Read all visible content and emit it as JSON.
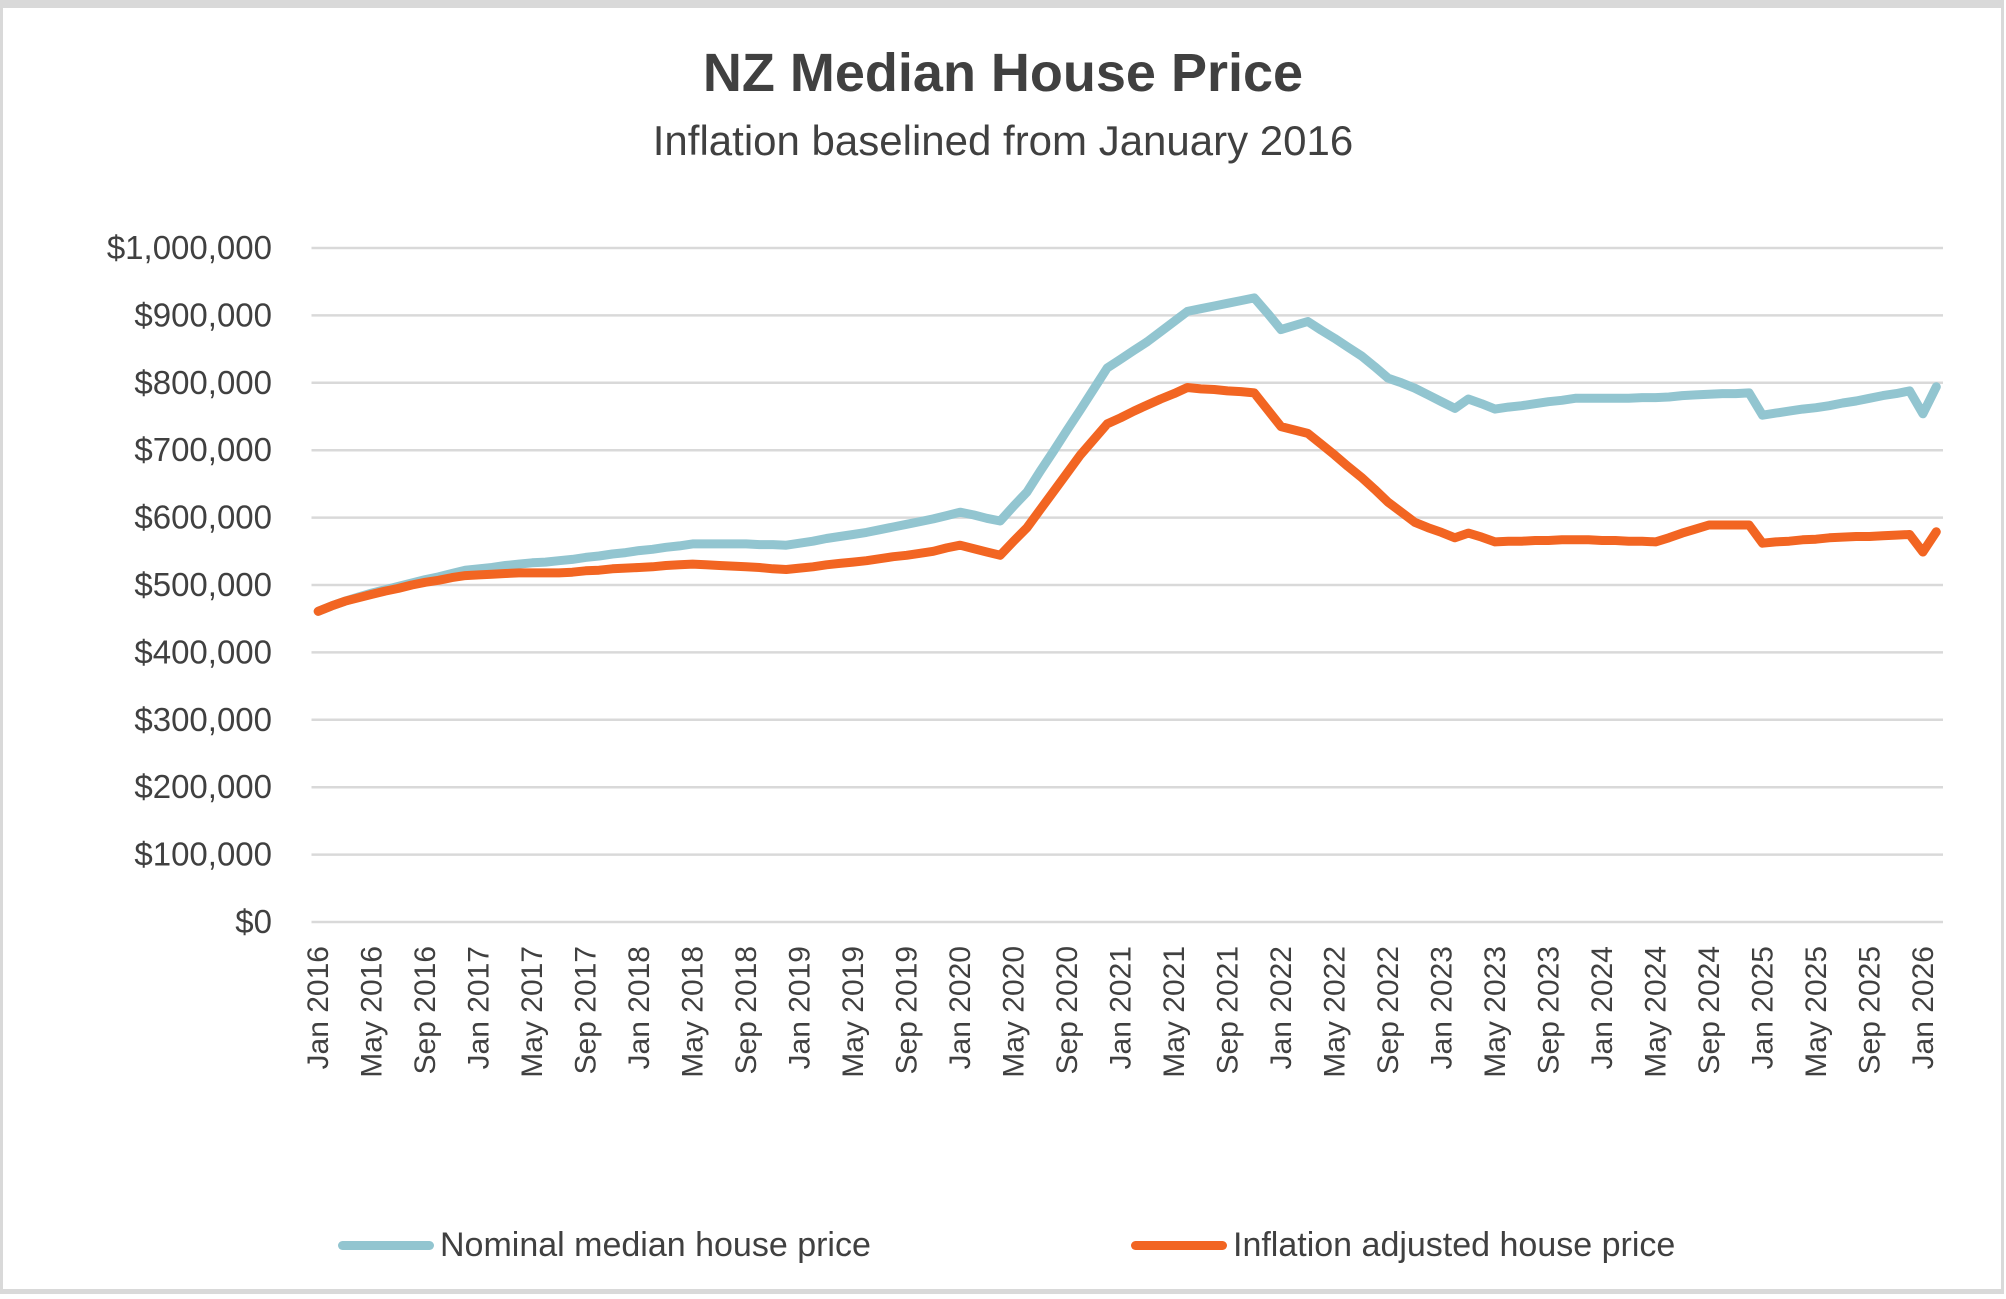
{
  "chart_data": {
    "type": "line",
    "title": "NZ Median House Price",
    "subtitle": "Inflation baselined from January 2016",
    "xlabel": "",
    "ylabel": "",
    "ylim": [
      0,
      1000000
    ],
    "y_ticks": [
      0,
      100000,
      200000,
      300000,
      400000,
      500000,
      600000,
      700000,
      800000,
      900000,
      1000000
    ],
    "y_tick_labels": [
      "$0",
      "$100,000",
      "$200,000",
      "$300,000",
      "$400,000",
      "$500,000",
      "$600,000",
      "$700,000",
      "$800,000",
      "$900,000",
      "$1,000,000"
    ],
    "grid": "horizontal",
    "x_start": "Jan 2016",
    "x_end": "Feb 2026",
    "x_frequency": "monthly",
    "x_tick_every_months": 4,
    "x_tick_labels": [
      "Jan 2016",
      "May 2016",
      "Sep 2016",
      "Jan 2017",
      "May 2017",
      "Sep 2017",
      "Jan 2018",
      "May 2018",
      "Sep 2018",
      "Jan 2019",
      "May 2019",
      "Sep 2019",
      "Jan 2020",
      "May 2020",
      "Sep 2020",
      "Jan 2021",
      "May 2021",
      "Sep 2021",
      "Jan 2022",
      "May 2022",
      "Sep 2022",
      "Jan 2023",
      "May 2023",
      "Sep 2023",
      "Jan 2024",
      "May 2024",
      "Sep 2024",
      "Jan 2025",
      "May 2025",
      "Sep 2025",
      "Jan 2026"
    ],
    "legend_position": "bottom",
    "series": [
      {
        "name": "Nominal median house price",
        "color": "#92C5D0",
        "values_thousands": [
          461,
          469,
          476,
          482,
          488,
          493,
          498,
          503,
          508,
          512,
          517,
          522,
          524,
          526,
          529,
          531,
          533,
          534,
          536,
          538,
          541,
          543,
          546,
          548,
          551,
          553,
          556,
          558,
          561,
          561,
          561,
          561,
          561,
          560,
          560,
          559,
          562,
          565,
          569,
          572,
          575,
          578,
          582,
          586,
          590,
          594,
          598,
          603,
          608,
          604,
          599,
          595,
          617,
          638,
          669,
          699,
          730,
          760,
          791,
          822,
          835,
          848,
          861,
          876,
          891,
          906,
          910,
          914,
          918,
          922,
          926,
          903,
          879,
          885,
          891,
          878,
          866,
          853,
          840,
          824,
          807,
          800,
          792,
          782,
          772,
          762,
          776,
          769,
          761,
          764,
          766,
          769,
          772,
          774,
          777,
          777,
          777,
          777,
          777,
          778,
          778,
          779,
          781,
          782,
          783,
          784,
          784,
          785,
          752,
          755,
          758,
          761,
          763,
          766,
          770,
          773,
          777,
          781,
          784,
          788,
          754,
          794
        ]
      },
      {
        "name": "Inflation adjusted house price",
        "color": "#F26522",
        "values_thousands": [
          461,
          469,
          476,
          481,
          486,
          491,
          495,
          500,
          504,
          507,
          511,
          514,
          515,
          516,
          517,
          518,
          518,
          518,
          518,
          519,
          521,
          522,
          524,
          525,
          526,
          527,
          529,
          530,
          531,
          530,
          529,
          528,
          527,
          526,
          524,
          523,
          525,
          527,
          530,
          532,
          534,
          536,
          539,
          542,
          544,
          547,
          550,
          555,
          559,
          554,
          549,
          544,
          565,
          585,
          612,
          639,
          666,
          693,
          716,
          739,
          748,
          758,
          767,
          776,
          784,
          793,
          791,
          790,
          788,
          787,
          785,
          760,
          735,
          730,
          725,
          709,
          693,
          676,
          660,
          642,
          623,
          608,
          593,
          585,
          578,
          570,
          577,
          571,
          564,
          565,
          565,
          566,
          566,
          567,
          567,
          567,
          566,
          566,
          565,
          565,
          564,
          570,
          577,
          583,
          589,
          589,
          589,
          589,
          562,
          564,
          565,
          567,
          568,
          570,
          571,
          572,
          572,
          573,
          574,
          575,
          549,
          579
        ]
      }
    ]
  }
}
